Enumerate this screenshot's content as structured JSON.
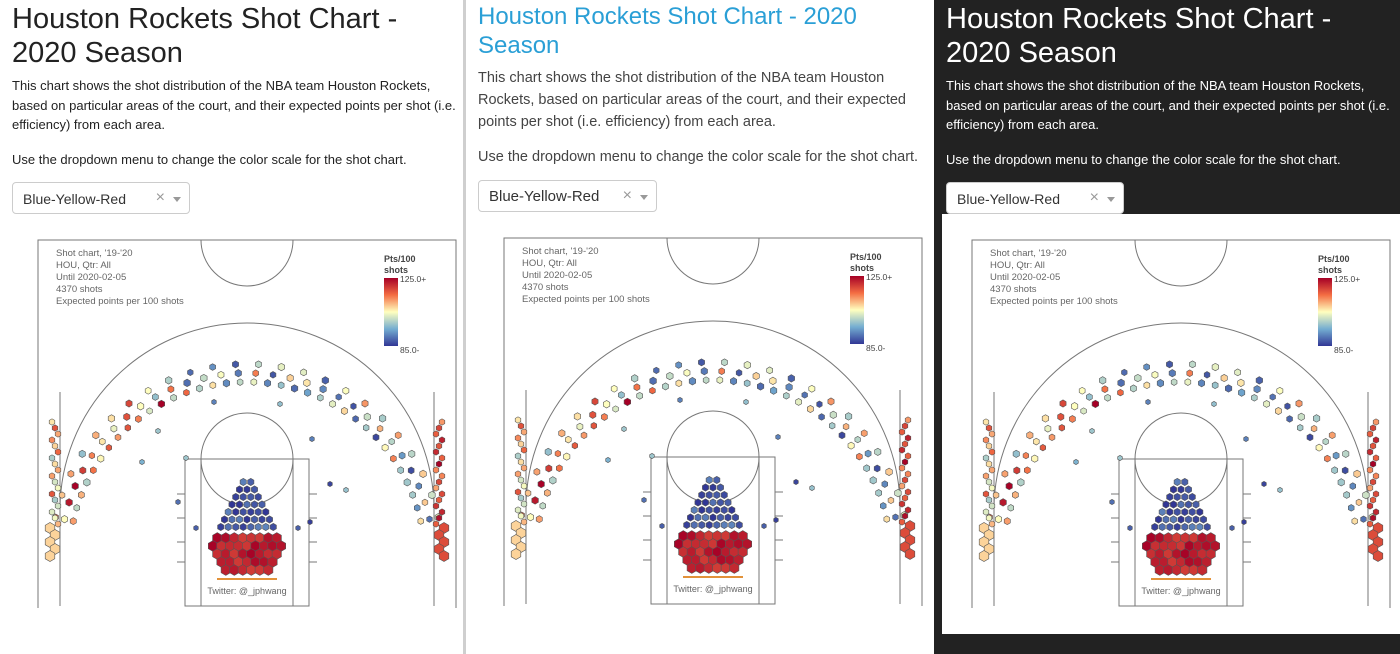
{
  "panels": [
    {
      "id": "light"
    },
    {
      "id": "blue-title"
    },
    {
      "id": "dark"
    }
  ],
  "page": {
    "title": "Houston Rockets Shot Chart - 2020 Season",
    "description": "This chart shows the shot distribution of the NBA team Houston Rockets, based on particular areas of the court, and their expected points per shot (i.e. efficiency) from each area.",
    "hint": "Use the dropdown menu to change the color scale for the shot chart."
  },
  "dropdown": {
    "selected": "Blue-Yellow-Red",
    "clear_icon": "×",
    "arrow_icon": "chevron-down"
  },
  "chart": {
    "info_lines": [
      "Shot chart, '19-'20",
      "HOU, Qtr: All",
      "Until 2020-02-05",
      "4370 shots",
      "Expected points per 100 shots"
    ],
    "credit": "Twitter: @_jphwang",
    "colorbar": {
      "title_line1": "Pts/100",
      "title_line2": "shots",
      "max_label": "125.0+",
      "min_label": "85.0-",
      "colors": [
        "#313695",
        "#74add1",
        "#ffffbf",
        "#f46d43",
        "#a50026"
      ]
    }
  },
  "chart_data": {
    "type": "scatter",
    "title": "Shot chart, '19-'20",
    "team": "HOU",
    "quarter": "All",
    "until": "2020-02-05",
    "total_shots": 4370,
    "metric": "Expected points per 100 shots",
    "color_scale": "Blue-Yellow-Red",
    "color_range": [
      85.0,
      125.0
    ],
    "zones": [
      {
        "zone": "restricted-area",
        "pts_per_100": 122
      },
      {
        "zone": "paint-non-ra",
        "pts_per_100": 88
      },
      {
        "zone": "mid-range",
        "pts_per_100": 85
      },
      {
        "zone": "left-corner-three",
        "pts_per_100": 108
      },
      {
        "zone": "right-corner-three",
        "pts_per_100": 118
      },
      {
        "zone": "left-wing-three",
        "pts_per_100": 112
      },
      {
        "zone": "top-of-key-three",
        "pts_per_100": 102
      },
      {
        "zone": "right-wing-three",
        "pts_per_100": 100
      }
    ]
  }
}
